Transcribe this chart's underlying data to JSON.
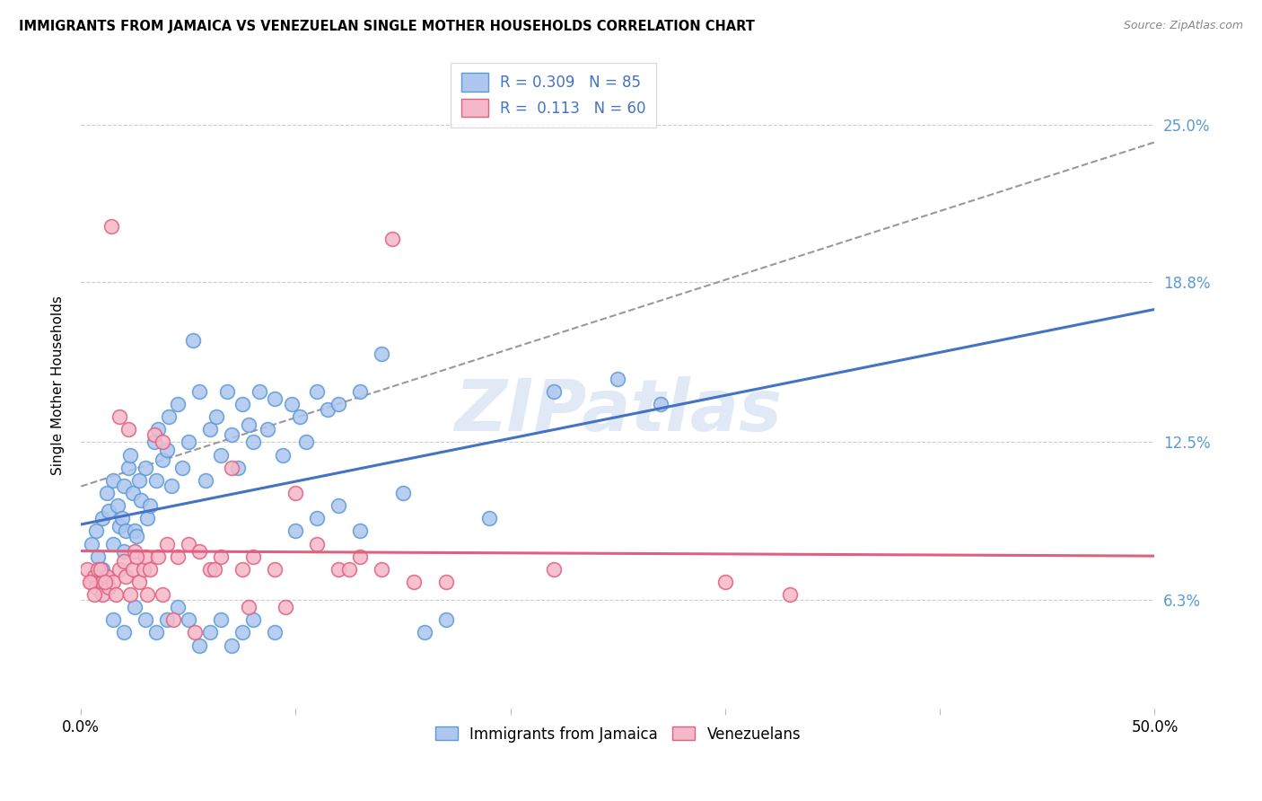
{
  "title": "IMMIGRANTS FROM JAMAICA VS VENEZUELAN SINGLE MOTHER HOUSEHOLDS CORRELATION CHART",
  "source": "Source: ZipAtlas.com",
  "ylabel": "Single Mother Households",
  "ytick_labels": [
    "6.3%",
    "12.5%",
    "18.8%",
    "25.0%"
  ],
  "ytick_values": [
    6.3,
    12.5,
    18.8,
    25.0
  ],
  "xmin": 0.0,
  "xmax": 50.0,
  "ymin": 2.0,
  "ymax": 27.5,
  "watermark": "ZIPatlas",
  "blue_color": "#5b9bd5",
  "blue_fill": "#aec6f0",
  "blue_edge": "#5b9bd5",
  "pink_color": "#e86080",
  "pink_fill": "#f5b8c8",
  "pink_edge": "#e06080",
  "blue_line_color": "#4472c4",
  "pink_line_color": "#e06080",
  "dashed_line_color": "#999999",
  "legend_text_color": "#4472c4",
  "R_blue": 0.309,
  "N_blue": 85,
  "R_pink": 0.113,
  "N_pink": 60,
  "blue_scatter_x": [
    0.5,
    0.7,
    0.8,
    1.0,
    1.2,
    1.3,
    1.5,
    1.5,
    1.7,
    1.8,
    1.9,
    2.0,
    2.0,
    2.1,
    2.2,
    2.3,
    2.4,
    2.5,
    2.6,
    2.7,
    2.8,
    3.0,
    3.1,
    3.2,
    3.4,
    3.5,
    3.6,
    3.8,
    4.0,
    4.1,
    4.2,
    4.5,
    4.7,
    5.0,
    5.2,
    5.5,
    5.8,
    6.0,
    6.3,
    6.5,
    6.8,
    7.0,
    7.3,
    7.5,
    7.8,
    8.0,
    8.3,
    8.7,
    9.0,
    9.4,
    9.8,
    10.2,
    10.5,
    11.0,
    11.5,
    12.0,
    13.0,
    14.0,
    15.0,
    16.0,
    17.0,
    19.0,
    22.0,
    25.0,
    27.0,
    1.0,
    1.5,
    2.0,
    2.5,
    3.0,
    3.5,
    4.0,
    4.5,
    5.0,
    5.5,
    6.0,
    6.5,
    7.0,
    7.5,
    8.0,
    9.0,
    10.0,
    11.0,
    12.0,
    13.0
  ],
  "blue_scatter_y": [
    8.5,
    9.0,
    8.0,
    9.5,
    10.5,
    9.8,
    11.0,
    8.5,
    10.0,
    9.2,
    9.5,
    10.8,
    8.2,
    9.0,
    11.5,
    12.0,
    10.5,
    9.0,
    8.8,
    11.0,
    10.2,
    11.5,
    9.5,
    10.0,
    12.5,
    11.0,
    13.0,
    11.8,
    12.2,
    13.5,
    10.8,
    14.0,
    11.5,
    12.5,
    16.5,
    14.5,
    11.0,
    13.0,
    13.5,
    12.0,
    14.5,
    12.8,
    11.5,
    14.0,
    13.2,
    12.5,
    14.5,
    13.0,
    14.2,
    12.0,
    14.0,
    13.5,
    12.5,
    14.5,
    13.8,
    14.0,
    14.5,
    16.0,
    10.5,
    5.0,
    5.5,
    9.5,
    14.5,
    15.0,
    14.0,
    7.5,
    5.5,
    5.0,
    6.0,
    5.5,
    5.0,
    5.5,
    6.0,
    5.5,
    4.5,
    5.0,
    5.5,
    4.5,
    5.0,
    5.5,
    5.0,
    9.0,
    9.5,
    10.0,
    9.0
  ],
  "pink_scatter_x": [
    0.3,
    0.5,
    0.6,
    0.7,
    0.8,
    1.0,
    1.0,
    1.2,
    1.3,
    1.5,
    1.6,
    1.8,
    2.0,
    2.1,
    2.2,
    2.4,
    2.5,
    2.7,
    2.9,
    3.0,
    3.2,
    3.4,
    3.6,
    3.8,
    4.0,
    4.5,
    5.0,
    5.5,
    6.0,
    6.5,
    7.0,
    7.5,
    8.0,
    9.0,
    10.0,
    11.0,
    12.0,
    13.0,
    14.0,
    15.5,
    17.0,
    22.0,
    30.0,
    33.0,
    0.4,
    0.6,
    0.9,
    1.1,
    1.4,
    1.8,
    2.3,
    2.6,
    3.1,
    3.8,
    4.3,
    5.3,
    6.2,
    7.8,
    9.5,
    12.5
  ],
  "pink_scatter_y": [
    7.5,
    7.0,
    7.2,
    6.8,
    7.5,
    7.0,
    6.5,
    7.2,
    6.8,
    7.0,
    6.5,
    7.5,
    7.8,
    7.2,
    13.0,
    7.5,
    8.2,
    7.0,
    7.5,
    8.0,
    7.5,
    12.8,
    8.0,
    12.5,
    8.5,
    8.0,
    8.5,
    8.2,
    7.5,
    8.0,
    11.5,
    7.5,
    8.0,
    7.5,
    10.5,
    8.5,
    7.5,
    8.0,
    7.5,
    7.0,
    7.0,
    7.5,
    7.0,
    6.5,
    7.0,
    6.5,
    7.5,
    7.0,
    21.0,
    13.5,
    6.5,
    8.0,
    6.5,
    6.5,
    5.5,
    5.0,
    7.5,
    6.0,
    6.0,
    7.5
  ],
  "pink_outlier_x": 14.5,
  "pink_outlier_y": 20.5
}
